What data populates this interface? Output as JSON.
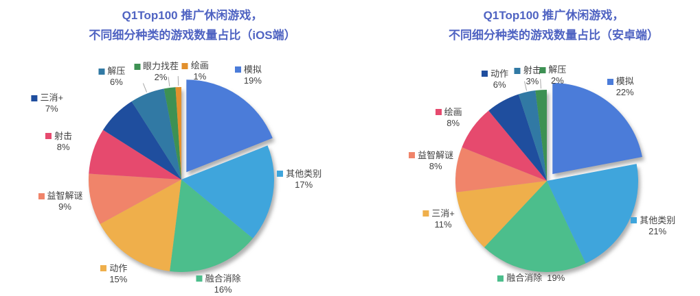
{
  "styles": {
    "background": "#FFFFFF",
    "title_color": "#4F63C2",
    "label_color": "#3F3F3F",
    "leader_line_color": "#A6A6A6"
  },
  "chart_data": [
    {
      "type": "pie",
      "id": "ios",
      "title_line1": "Q1Top100 推广休闲游戏，",
      "title_line2": "不同细分种类的游戏数量占比（iOS端）",
      "title": "Q1Top100 推广休闲游戏，不同细分种类的游戏数量占比（iOS端）",
      "start_angle_deg": 0,
      "direction": "clockwise",
      "exploded_slice": "模拟",
      "labels_style": "outside, color square + name + percent",
      "values_unit": "%",
      "slices": [
        {
          "label": "模拟",
          "value": 19,
          "percent": "19%",
          "color": "#4B7CD9"
        },
        {
          "label": "其他类别",
          "value": 17,
          "percent": "17%",
          "color": "#3FA5DC"
        },
        {
          "label": "融合消除",
          "value": 16,
          "percent": "16%",
          "color": "#4CBE8C"
        },
        {
          "label": "动作",
          "value": 15,
          "percent": "15%",
          "color": "#EFAF4B"
        },
        {
          "label": "益智解谜",
          "value": 9,
          "percent": "9%",
          "color": "#F0846A"
        },
        {
          "label": "射击",
          "value": 8,
          "percent": "8%",
          "color": "#E64A6E"
        },
        {
          "label": "三消+",
          "value": 7,
          "percent": "7%",
          "color": "#1F4E9E"
        },
        {
          "label": "解压",
          "value": 6,
          "percent": "6%",
          "color": "#3179A4"
        },
        {
          "label": "眼力找茬",
          "value": 2,
          "percent": "2%",
          "color": "#3D9153"
        },
        {
          "label": "绘画",
          "value": 1,
          "percent": "1%",
          "color": "#E2902C"
        }
      ]
    },
    {
      "type": "pie",
      "id": "android",
      "title_line1": "Q1Top100 推广休闲游戏，",
      "title_line2": "不同细分种类的游戏数量占比（安卓端）",
      "title": "Q1Top100 推广休闲游戏，不同细分种类的游戏数量占比（安卓端）",
      "start_angle_deg": 0,
      "direction": "clockwise",
      "exploded_slice": "模拟",
      "labels_style": "outside, color square + name + percent",
      "values_unit": "%",
      "slices": [
        {
          "label": "模拟",
          "value": 22,
          "percent": "22%",
          "color": "#4B7CD9"
        },
        {
          "label": "其他类别",
          "value": 21,
          "percent": "21%",
          "color": "#3FA5DC"
        },
        {
          "label": "融合消除",
          "value": 19,
          "percent": "19%",
          "color": "#4CBE8C"
        },
        {
          "label": "三消+",
          "value": 11,
          "percent": "11%",
          "color": "#EFAF4B"
        },
        {
          "label": "益智解谜",
          "value": 8,
          "percent": "8%",
          "color": "#F0846A"
        },
        {
          "label": "绘画",
          "value": 8,
          "percent": "8%",
          "color": "#E64A6E"
        },
        {
          "label": "动作",
          "value": 6,
          "percent": "6%",
          "color": "#1F4E9E"
        },
        {
          "label": "射击",
          "value": 3,
          "percent": "3%",
          "color": "#3179A4"
        },
        {
          "label": "解压",
          "value": 2,
          "percent": "2%",
          "color": "#3D9153"
        }
      ]
    }
  ]
}
